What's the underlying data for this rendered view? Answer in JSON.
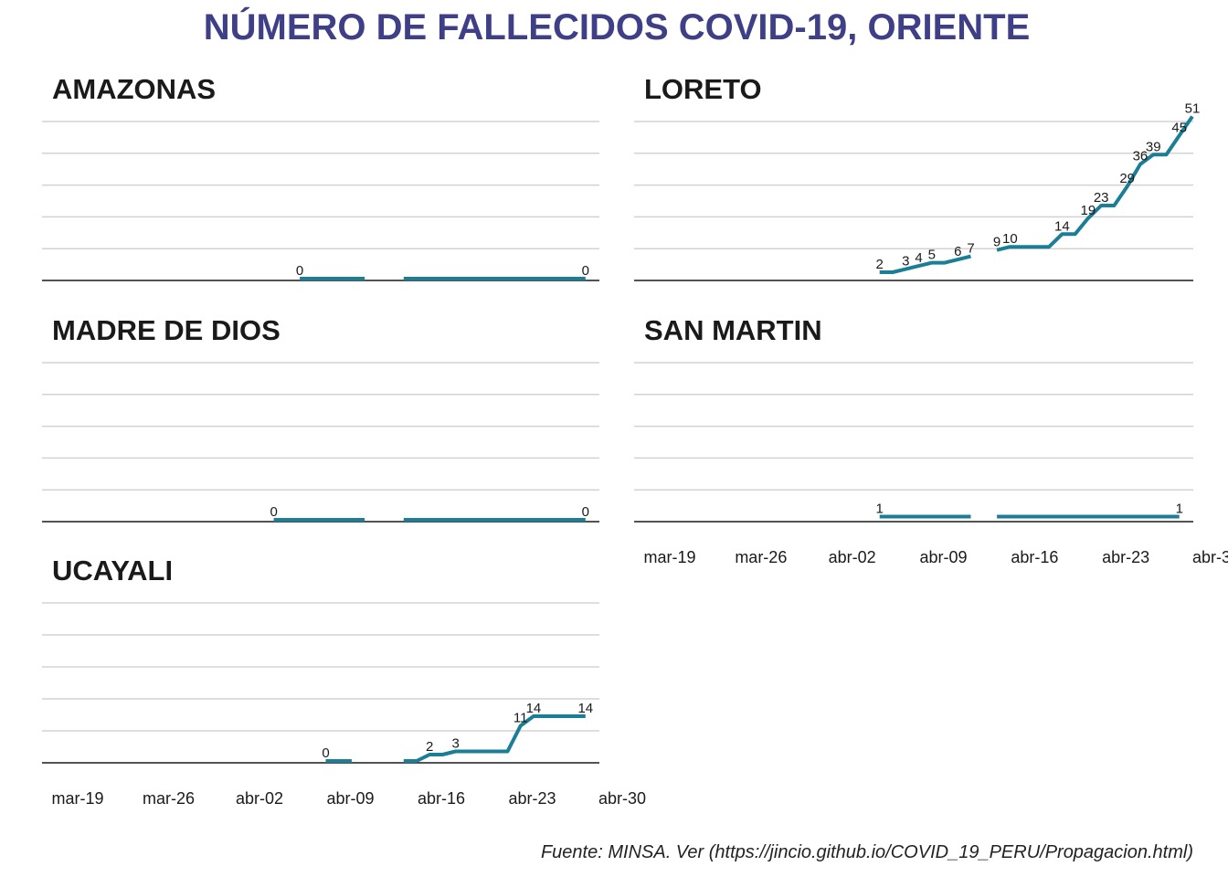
{
  "title": "NÚMERO DE FALLECIDOS COVID-19, ORIENTE",
  "caption": "Fuente: MINSA. Ver (https://jincio.github.io/COVID_19_PERU/Propagacion.html)",
  "colors": {
    "title": "#3f3f87",
    "line": "#1a7f96",
    "grid": "#d3d3d3",
    "axis": "#1a1a1a",
    "text": "#1a1a1a"
  },
  "chart_data": {
    "type": "line",
    "layout": "facet",
    "ylim": [
      0,
      50
    ],
    "grid": true,
    "x_tick_labels": [
      "mar-19",
      "mar-26",
      "abr-02",
      "abr-09",
      "abr-16",
      "abr-23",
      "abr-30"
    ],
    "panels": [
      {
        "name": "AMAZONAS",
        "points": [
          [
            "2020-04-07",
            0
          ],
          [
            "2020-04-08",
            0
          ],
          [
            "2020-04-09",
            0
          ],
          [
            "2020-04-10",
            0
          ],
          [
            "2020-04-11",
            0
          ],
          [
            "2020-04-12",
            0
          ],
          [
            "2020-04-15",
            0
          ],
          [
            "2020-04-16",
            0
          ],
          [
            "2020-04-17",
            0
          ],
          [
            "2020-04-18",
            0
          ],
          [
            "2020-04-19",
            0
          ],
          [
            "2020-04-20",
            0
          ],
          [
            "2020-04-21",
            0
          ],
          [
            "2020-04-22",
            0
          ],
          [
            "2020-04-23",
            0
          ],
          [
            "2020-04-24",
            0
          ],
          [
            "2020-04-25",
            0
          ],
          [
            "2020-04-26",
            0
          ],
          [
            "2020-04-27",
            0
          ],
          [
            "2020-04-28",
            0
          ],
          [
            "2020-04-29",
            0
          ]
        ],
        "labels": [
          [
            "2020-04-07",
            0
          ],
          [
            "2020-04-29",
            0
          ]
        ]
      },
      {
        "name": "LORETO",
        "points": [
          [
            "2020-04-06",
            2
          ],
          [
            "2020-04-07",
            2
          ],
          [
            "2020-04-08",
            3
          ],
          [
            "2020-04-09",
            4
          ],
          [
            "2020-04-10",
            5
          ],
          [
            "2020-04-11",
            5
          ],
          [
            "2020-04-12",
            6
          ],
          [
            "2020-04-13",
            7
          ],
          [
            "2020-04-15",
            9
          ],
          [
            "2020-04-16",
            10
          ],
          [
            "2020-04-17",
            10
          ],
          [
            "2020-04-18",
            10
          ],
          [
            "2020-04-19",
            10
          ],
          [
            "2020-04-20",
            14
          ],
          [
            "2020-04-21",
            14
          ],
          [
            "2020-04-22",
            19
          ],
          [
            "2020-04-23",
            23
          ],
          [
            "2020-04-24",
            23
          ],
          [
            "2020-04-25",
            29
          ],
          [
            "2020-04-26",
            36
          ],
          [
            "2020-04-27",
            39
          ],
          [
            "2020-04-28",
            39
          ],
          [
            "2020-04-29",
            45
          ],
          [
            "2020-04-30",
            51
          ]
        ],
        "labels": [
          [
            "2020-04-06",
            2
          ],
          [
            "2020-04-08",
            3
          ],
          [
            "2020-04-09",
            4
          ],
          [
            "2020-04-10",
            5
          ],
          [
            "2020-04-12",
            6
          ],
          [
            "2020-04-13",
            7
          ],
          [
            "2020-04-15",
            9
          ],
          [
            "2020-04-16",
            10
          ],
          [
            "2020-04-20",
            14
          ],
          [
            "2020-04-22",
            19
          ],
          [
            "2020-04-23",
            23
          ],
          [
            "2020-04-25",
            29
          ],
          [
            "2020-04-26",
            36
          ],
          [
            "2020-04-27",
            39
          ],
          [
            "2020-04-29",
            45
          ],
          [
            "2020-04-30",
            51
          ]
        ]
      },
      {
        "name": "MADRE DE DIOS",
        "points": [
          [
            "2020-04-05",
            0
          ],
          [
            "2020-04-06",
            0
          ],
          [
            "2020-04-07",
            0
          ],
          [
            "2020-04-08",
            0
          ],
          [
            "2020-04-09",
            0
          ],
          [
            "2020-04-10",
            0
          ],
          [
            "2020-04-11",
            0
          ],
          [
            "2020-04-12",
            0
          ],
          [
            "2020-04-15",
            0
          ],
          [
            "2020-04-16",
            0
          ],
          [
            "2020-04-17",
            0
          ],
          [
            "2020-04-18",
            0
          ],
          [
            "2020-04-19",
            0
          ],
          [
            "2020-04-20",
            0
          ],
          [
            "2020-04-21",
            0
          ],
          [
            "2020-04-22",
            0
          ],
          [
            "2020-04-23",
            0
          ],
          [
            "2020-04-24",
            0
          ],
          [
            "2020-04-25",
            0
          ],
          [
            "2020-04-26",
            0
          ],
          [
            "2020-04-27",
            0
          ],
          [
            "2020-04-28",
            0
          ],
          [
            "2020-04-29",
            0
          ]
        ],
        "labels": [
          [
            "2020-04-05",
            0
          ],
          [
            "2020-04-29",
            0
          ]
        ]
      },
      {
        "name": "SAN MARTIN",
        "points": [
          [
            "2020-04-06",
            1
          ],
          [
            "2020-04-07",
            1
          ],
          [
            "2020-04-08",
            1
          ],
          [
            "2020-04-09",
            1
          ],
          [
            "2020-04-10",
            1
          ],
          [
            "2020-04-11",
            1
          ],
          [
            "2020-04-12",
            1
          ],
          [
            "2020-04-13",
            1
          ],
          [
            "2020-04-15",
            1
          ],
          [
            "2020-04-16",
            1
          ],
          [
            "2020-04-17",
            1
          ],
          [
            "2020-04-18",
            1
          ],
          [
            "2020-04-19",
            1
          ],
          [
            "2020-04-20",
            1
          ],
          [
            "2020-04-21",
            1
          ],
          [
            "2020-04-22",
            1
          ],
          [
            "2020-04-23",
            1
          ],
          [
            "2020-04-24",
            1
          ],
          [
            "2020-04-25",
            1
          ],
          [
            "2020-04-26",
            1
          ],
          [
            "2020-04-27",
            1
          ],
          [
            "2020-04-28",
            1
          ],
          [
            "2020-04-29",
            1
          ]
        ],
        "labels": [
          [
            "2020-04-06",
            1
          ],
          [
            "2020-04-29",
            1
          ]
        ]
      },
      {
        "name": "UCAYALI",
        "points": [
          [
            "2020-04-09",
            0
          ],
          [
            "2020-04-10",
            0
          ],
          [
            "2020-04-11",
            0
          ],
          [
            "2020-04-15",
            0
          ],
          [
            "2020-04-16",
            0
          ],
          [
            "2020-04-17",
            2
          ],
          [
            "2020-04-18",
            2
          ],
          [
            "2020-04-19",
            3
          ],
          [
            "2020-04-20",
            3
          ],
          [
            "2020-04-21",
            3
          ],
          [
            "2020-04-22",
            3
          ],
          [
            "2020-04-23",
            3
          ],
          [
            "2020-04-24",
            11
          ],
          [
            "2020-04-25",
            14
          ],
          [
            "2020-04-26",
            14
          ],
          [
            "2020-04-27",
            14
          ],
          [
            "2020-04-28",
            14
          ],
          [
            "2020-04-29",
            14
          ]
        ],
        "labels": [
          [
            "2020-04-09",
            0
          ],
          [
            "2020-04-17",
            2
          ],
          [
            "2020-04-19",
            3
          ],
          [
            "2020-04-24",
            11
          ],
          [
            "2020-04-25",
            14
          ],
          [
            "2020-04-29",
            14
          ]
        ]
      }
    ]
  }
}
